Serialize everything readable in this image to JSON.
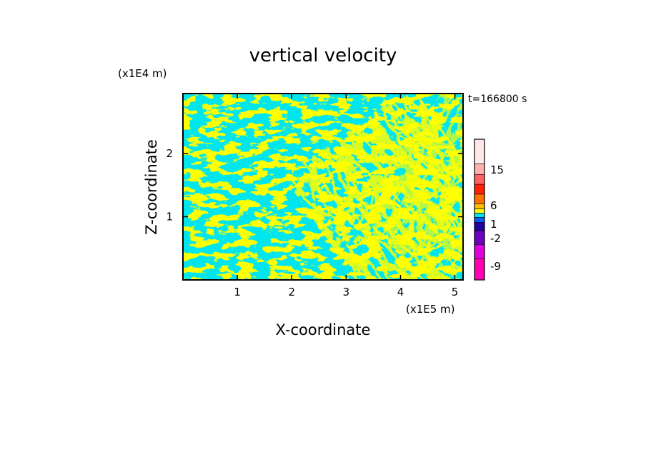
{
  "chart_data": {
    "type": "heatmap",
    "title": "vertical velocity",
    "xlabel": "X-coordinate",
    "ylabel": "Z-coordinate",
    "x_unit": "(x1E5 m)",
    "y_unit": "(x1E4 m)",
    "time_label": "t=166800 s",
    "xlim": [
      0,
      5.15
    ],
    "ylim": [
      0,
      2.95
    ],
    "x_ticks": [
      {
        "value": 1,
        "label": "1"
      },
      {
        "value": 2,
        "label": "2"
      },
      {
        "value": 3,
        "label": "3"
      },
      {
        "value": 4,
        "label": "4"
      },
      {
        "value": 5,
        "label": "5"
      }
    ],
    "y_ticks": [
      {
        "value": 1,
        "label": "1"
      },
      {
        "value": 2,
        "label": "2"
      }
    ],
    "field_colors": {
      "positive": "#ffff00",
      "negative": "#00e5ee"
    },
    "colorbar": {
      "labels": [
        "15",
        "6",
        "1",
        "-2",
        "-9"
      ],
      "bands": [
        {
          "color": "#ff00b0"
        },
        {
          "color": "#e000e0"
        },
        {
          "color": "#7000c0"
        },
        {
          "color": "#2000a0"
        },
        {
          "color": "#0060ff"
        },
        {
          "color": "#00e5ee"
        },
        {
          "color": "#ffff00"
        },
        {
          "color": "#ffc000"
        },
        {
          "color": "#ff7000"
        },
        {
          "color": "#ff2000"
        },
        {
          "color": "#ff6060"
        },
        {
          "color": "#ffb0b0"
        },
        {
          "color": "#ffe8e8"
        }
      ]
    }
  }
}
